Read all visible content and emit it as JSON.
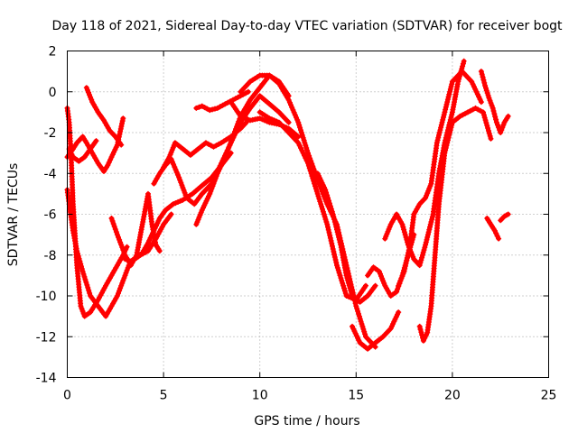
{
  "chart_data": {
    "type": "scatter",
    "title": "Day 118 of 2021, Sidereal Day-to-day VTEC variation (SDTVAR) for receiver bogt",
    "xlabel": "GPS time / hours",
    "ylabel": "SDTVAR / TECUs",
    "xlim": [
      0,
      25
    ],
    "ylim": [
      -14,
      2
    ],
    "xticks": [
      0,
      5,
      10,
      15,
      20,
      25
    ],
    "yticks": [
      2,
      0,
      -2,
      -4,
      -6,
      -8,
      -10,
      -12,
      -14
    ],
    "xtick_labels": [
      "0",
      "5",
      "10",
      "15",
      "20",
      "25"
    ],
    "ytick_labels": [
      "2",
      "0",
      "-2",
      "-4",
      "-6",
      "-8",
      "-10",
      "-12",
      "-14"
    ],
    "grid": true,
    "marker": "+",
    "color": "#ff0000",
    "series": [
      {
        "name": "s1",
        "x": [
          0.0,
          0.1,
          0.2,
          0.3,
          0.5,
          0.7,
          0.9,
          1.2,
          1.6,
          2.0,
          2.3,
          2.6,
          2.9,
          3.1
        ],
        "y": [
          -0.8,
          -1.5,
          -3.2,
          -5.5,
          -8.5,
          -10.5,
          -11.0,
          -10.8,
          -10.2,
          -9.5,
          -9.0,
          -8.5,
          -8.0,
          -7.6
        ]
      },
      {
        "name": "s2",
        "x": [
          0.0,
          0.1,
          0.3,
          0.5,
          0.8,
          1.2,
          1.6,
          2.0,
          2.3,
          2.6,
          2.8,
          3.0,
          3.2,
          3.5,
          3.8,
          4.2,
          4.6,
          5.0,
          5.4
        ],
        "y": [
          -4.8,
          -5.5,
          -6.8,
          -7.8,
          -8.8,
          -10.0,
          -10.5,
          -11.0,
          -10.5,
          -10.0,
          -9.5,
          -9.0,
          -8.5,
          -8.2,
          -8.0,
          -7.8,
          -7.2,
          -6.5,
          -6.0
        ]
      },
      {
        "name": "s3",
        "x": [
          0.0,
          0.3,
          0.5,
          0.8,
          1.0,
          1.3,
          1.6,
          1.9,
          2.1,
          2.3,
          2.6,
          2.9
        ],
        "y": [
          -3.2,
          -2.8,
          -2.5,
          -2.2,
          -2.5,
          -3.0,
          -3.5,
          -3.9,
          -3.6,
          -3.2,
          -2.6,
          -1.3
        ]
      },
      {
        "name": "s4",
        "x": [
          0.1,
          0.3,
          0.6,
          0.9,
          1.2,
          1.5
        ],
        "y": [
          -2.8,
          -3.2,
          -3.4,
          -3.2,
          -2.8,
          -2.4
        ]
      },
      {
        "name": "s5",
        "x": [
          1.0,
          1.3,
          1.6,
          1.9,
          2.2,
          2.5,
          2.8
        ],
        "y": [
          0.2,
          -0.5,
          -1.0,
          -1.4,
          -1.9,
          -2.2,
          -2.6
        ]
      },
      {
        "name": "s6",
        "x": [
          2.3,
          2.6,
          3.0,
          3.3,
          3.6,
          3.8,
          4.0,
          4.2,
          4.4,
          4.6,
          4.8
        ],
        "y": [
          -6.2,
          -7.0,
          -8.0,
          -8.5,
          -8.0,
          -7.0,
          -6.0,
          -5.0,
          -6.5,
          -7.5,
          -7.8
        ]
      },
      {
        "name": "s7",
        "x": [
          3.0,
          3.3,
          3.6,
          3.9,
          4.2,
          4.5,
          4.8,
          5.1,
          5.5,
          6.0,
          6.5,
          7.0,
          7.5,
          8.0,
          8.5
        ],
        "y": [
          -8.2,
          -8.3,
          -8.1,
          -7.9,
          -7.4,
          -6.8,
          -6.2,
          -5.8,
          -5.5,
          -5.3,
          -5.0,
          -4.6,
          -4.2,
          -3.6,
          -3.0
        ]
      },
      {
        "name": "s8",
        "x": [
          4.5,
          4.8,
          5.1,
          5.4,
          5.8,
          6.2,
          6.6,
          7.0,
          7.5,
          8.0,
          8.5,
          9.0,
          9.5,
          10.0,
          10.5,
          11.0,
          11.5
        ],
        "y": [
          -4.5,
          -4.0,
          -3.6,
          -3.3,
          -4.2,
          -5.2,
          -5.5,
          -5.0,
          -4.5,
          -3.5,
          -2.5,
          -1.5,
          -0.8,
          -0.2,
          -0.6,
          -1.0,
          -1.5
        ]
      },
      {
        "name": "s9",
        "x": [
          5.0,
          5.3,
          5.6,
          6.0,
          6.4,
          6.8,
          7.2,
          7.6,
          8.0,
          8.5,
          9.0,
          9.3
        ],
        "y": [
          -3.7,
          -3.2,
          -2.5,
          -2.8,
          -3.1,
          -2.8,
          -2.5,
          -2.7,
          -2.5,
          -2.2,
          -1.8,
          -1.5
        ]
      },
      {
        "name": "s10",
        "x": [
          6.7,
          7.0,
          7.4,
          7.8,
          8.2,
          8.6,
          9.0,
          9.5,
          10.0,
          10.5,
          11.0,
          11.5
        ],
        "y": [
          -6.5,
          -5.8,
          -5.0,
          -4.0,
          -3.2,
          -2.2,
          -1.2,
          -0.4,
          0.2,
          0.8,
          0.5,
          -0.2
        ]
      },
      {
        "name": "s11",
        "x": [
          6.7,
          7.0,
          7.4,
          7.8,
          8.2,
          8.6,
          9.0,
          9.4
        ],
        "y": [
          -0.8,
          -0.7,
          -0.9,
          -0.8,
          -0.6,
          -0.4,
          -0.2,
          0.0
        ]
      },
      {
        "name": "s12",
        "x": [
          8.5,
          9.0,
          9.5,
          10.0,
          10.5,
          11.0,
          11.5,
          12.0
        ],
        "y": [
          -0.5,
          -1.2,
          -1.4,
          -1.3,
          -1.5,
          -1.6,
          -1.8,
          -2.2
        ]
      },
      {
        "name": "s13",
        "x": [
          9.0,
          9.5,
          10.0,
          10.5,
          11.0,
          11.5,
          12.0,
          12.5,
          13.0,
          13.5,
          14.0,
          14.5,
          15.0,
          15.5,
          16.0
        ],
        "y": [
          0.0,
          0.5,
          0.8,
          0.8,
          0.4,
          -0.4,
          -1.5,
          -3.0,
          -4.3,
          -5.5,
          -6.5,
          -8.5,
          -10.5,
          -12.0,
          -12.5
        ]
      },
      {
        "name": "s14",
        "x": [
          10.0,
          10.5,
          11.0,
          11.5,
          12.0,
          12.5,
          13.0,
          13.5,
          14.0,
          14.5,
          15.0,
          15.5
        ],
        "y": [
          -1.0,
          -1.3,
          -1.5,
          -2.0,
          -2.5,
          -3.5,
          -5.0,
          -6.5,
          -8.5,
          -10.0,
          -10.2,
          -9.5
        ]
      },
      {
        "name": "s15",
        "x": [
          13.0,
          13.4,
          13.8,
          14.2,
          14.5,
          14.8,
          15.2,
          15.6,
          16.0
        ],
        "y": [
          -4.0,
          -4.8,
          -6.0,
          -7.5,
          -9.0,
          -10.0,
          -10.3,
          -10.0,
          -9.5
        ]
      },
      {
        "name": "s16",
        "x": [
          14.8,
          15.2,
          15.6,
          16.0,
          16.4,
          16.8,
          17.2
        ],
        "y": [
          -11.5,
          -12.3,
          -12.6,
          -12.3,
          -12.0,
          -11.6,
          -10.8
        ]
      },
      {
        "name": "s17",
        "x": [
          15.6,
          15.9,
          16.2,
          16.5,
          16.8,
          17.1,
          17.4,
          17.7,
          18.0
        ],
        "y": [
          -9.0,
          -8.6,
          -8.8,
          -9.5,
          -10.0,
          -9.8,
          -9.0,
          -8.0,
          -7.0
        ]
      },
      {
        "name": "s18",
        "x": [
          16.5,
          16.8,
          17.1,
          17.4,
          17.7,
          18.0,
          18.3,
          18.6,
          19.0,
          19.3,
          19.6,
          20.0,
          20.3,
          20.6
        ],
        "y": [
          -7.2,
          -6.5,
          -6.0,
          -6.5,
          -7.5,
          -8.2,
          -8.5,
          -7.5,
          -6.0,
          -4.0,
          -2.5,
          -1.0,
          0.5,
          1.5
        ]
      },
      {
        "name": "s19",
        "x": [
          17.2,
          17.5,
          17.8,
          18.0,
          18.3,
          18.6,
          18.9,
          19.2,
          19.6,
          20.0,
          20.5,
          21.0,
          21.5
        ],
        "y": [
          -9.5,
          -8.8,
          -7.5,
          -6.0,
          -5.5,
          -5.2,
          -4.5,
          -2.5,
          -1.0,
          0.5,
          1.0,
          0.5,
          -0.5
        ]
      },
      {
        "name": "s20",
        "x": [
          18.3,
          18.5,
          18.7,
          18.9,
          19.1,
          19.3,
          19.6,
          20.0,
          20.4,
          20.8,
          21.2,
          21.6,
          22.0
        ],
        "y": [
          -11.5,
          -12.2,
          -11.8,
          -10.5,
          -8.0,
          -5.5,
          -3.0,
          -1.5,
          -1.2,
          -1.0,
          -0.8,
          -1.0,
          -2.3
        ]
      },
      {
        "name": "s21",
        "x": [
          21.5,
          21.7,
          21.9,
          22.1,
          22.3,
          22.5,
          22.7,
          22.9
        ],
        "y": [
          1.0,
          0.3,
          -0.3,
          -0.8,
          -1.5,
          -2.0,
          -1.5,
          -1.2
        ]
      },
      {
        "name": "s22",
        "x": [
          21.8,
          22.0,
          22.2,
          22.4
        ],
        "y": [
          -6.2,
          -6.5,
          -6.8,
          -7.2
        ]
      },
      {
        "name": "s23",
        "x": [
          22.5,
          22.7,
          22.9
        ],
        "y": [
          -6.3,
          -6.1,
          -6.0
        ]
      }
    ]
  }
}
